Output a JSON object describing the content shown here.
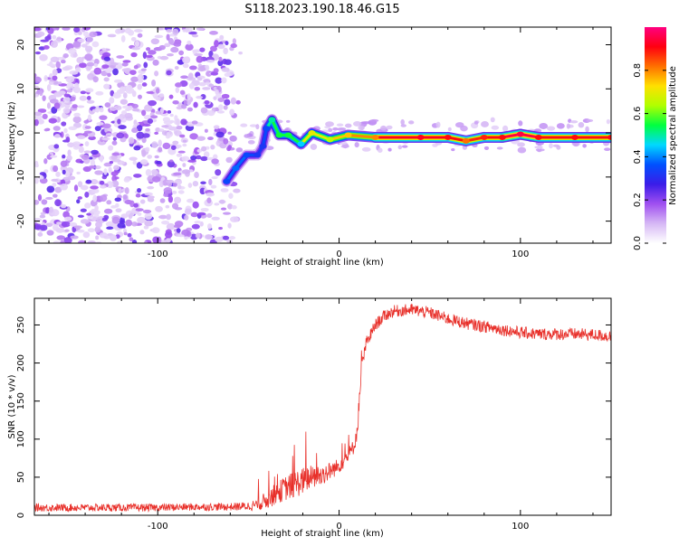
{
  "figure_title": "S118.2023.190.18.46.G15",
  "colorbar": {
    "label": "Normalized spectral amplitude",
    "range": [
      0,
      1
    ],
    "ticks": [
      {
        "value": 0.0,
        "label": "0.0"
      },
      {
        "value": 0.2,
        "label": "0.2"
      },
      {
        "value": 0.4,
        "label": "0.4"
      },
      {
        "value": 0.6,
        "label": "0.6"
      },
      {
        "value": 0.8,
        "label": "0.8"
      }
    ],
    "palette": [
      "#ffffff",
      "#d6b8f5",
      "#a050f0",
      "#3b1ce8",
      "#0050ff",
      "#00d8ff",
      "#00ff40",
      "#b0ff00",
      "#ffe000",
      "#ff7000",
      "#ff0010",
      "#ff0080"
    ]
  },
  "chart_data": [
    {
      "id": "spectrogram",
      "type": "heatmap",
      "xlabel": "Height of straight line (km)",
      "ylabel": "Frequency (Hz)",
      "xlim": [
        -168,
        150
      ],
      "ylim": [
        -25,
        24
      ],
      "xticks": [
        {
          "value": -100,
          "label": "-100"
        },
        {
          "value": 0,
          "label": "0"
        },
        {
          "value": 100,
          "label": "100"
        }
      ],
      "yticks": [
        {
          "value": 20,
          "label": "20"
        },
        {
          "value": 10,
          "label": "10"
        },
        {
          "value": 0,
          "label": "0"
        },
        {
          "value": -10,
          "label": "-10"
        },
        {
          "value": -20,
          "label": "-20"
        }
      ],
      "noise_region": {
        "x": [
          -168,
          -53
        ],
        "y": [
          -25,
          24
        ],
        "amplitude": [
          0.05,
          0.25
        ]
      },
      "signal_track": [
        {
          "x": -62,
          "y": -11,
          "amp": 0.35
        },
        {
          "x": -57,
          "y": -8,
          "amp": 0.38
        },
        {
          "x": -51,
          "y": -5,
          "amp": 0.35
        },
        {
          "x": -45,
          "y": -5,
          "amp": 0.32
        },
        {
          "x": -42,
          "y": -3,
          "amp": 0.32
        },
        {
          "x": -40,
          "y": 1,
          "amp": 0.35
        },
        {
          "x": -37,
          "y": 3,
          "amp": 0.5
        },
        {
          "x": -33,
          "y": -0.5,
          "amp": 0.55
        },
        {
          "x": -28,
          "y": -0.5,
          "amp": 0.55
        },
        {
          "x": -21,
          "y": -2.5,
          "amp": 0.45
        },
        {
          "x": -15,
          "y": 0,
          "amp": 0.7
        },
        {
          "x": -5,
          "y": -1.5,
          "amp": 0.65
        },
        {
          "x": 5,
          "y": -0.5,
          "amp": 0.75
        },
        {
          "x": 20,
          "y": -1,
          "amp": 0.8
        },
        {
          "x": 45,
          "y": -1,
          "amp": 0.92
        },
        {
          "x": 60,
          "y": -1,
          "amp": 0.9
        },
        {
          "x": 70,
          "y": -1.8,
          "amp": 0.82
        },
        {
          "x": 80,
          "y": -1,
          "amp": 0.88
        },
        {
          "x": 90,
          "y": -1,
          "amp": 0.9
        },
        {
          "x": 100,
          "y": -0.3,
          "amp": 0.95
        },
        {
          "x": 110,
          "y": -1,
          "amp": 0.9
        },
        {
          "x": 130,
          "y": -1,
          "amp": 0.9
        },
        {
          "x": 150,
          "y": -1,
          "amp": 0.9
        }
      ]
    },
    {
      "id": "snr",
      "type": "line",
      "xlabel": "Height of straight line (km)",
      "ylabel": "SNR (10 * v/v)",
      "xlim": [
        -168,
        150
      ],
      "ylim": [
        0,
        285
      ],
      "series_color": "#e8302a",
      "xticks": [
        {
          "value": -100,
          "label": "-100"
        },
        {
          "value": 0,
          "label": "0"
        },
        {
          "value": 100,
          "label": "100"
        }
      ],
      "yticks": [
        {
          "value": 0,
          "label": "0"
        },
        {
          "value": 50,
          "label": "50"
        },
        {
          "value": 100,
          "label": "100"
        },
        {
          "value": 150,
          "label": "150"
        },
        {
          "value": 200,
          "label": "200"
        },
        {
          "value": 250,
          "label": "250"
        }
      ],
      "series": [
        {
          "x": [
            -168,
            -140,
            -120,
            -100,
            -80,
            -60,
            -50,
            -45,
            -40,
            -35,
            -30,
            -25,
            -20,
            -15,
            -10,
            -5,
            0,
            5,
            8,
            10,
            12,
            13,
            15,
            20,
            25,
            30,
            40,
            50,
            60,
            70,
            80,
            90,
            100,
            110,
            120,
            130,
            140,
            150
          ],
          "y": [
            10,
            10,
            10,
            10,
            11,
            11,
            12,
            14,
            20,
            28,
            35,
            40,
            45,
            50,
            52,
            58,
            65,
            78,
            90,
            110,
            180,
            200,
            225,
            250,
            262,
            268,
            270,
            266,
            258,
            252,
            248,
            244,
            240,
            238,
            238,
            238,
            237,
            235
          ],
          "noise": [
            5,
            5,
            5,
            5,
            5,
            5,
            6,
            8,
            12,
            14,
            16,
            18,
            18,
            16,
            14,
            12,
            10,
            10,
            10,
            12,
            12,
            10,
            10,
            8,
            8,
            8,
            8,
            8,
            8,
            8,
            8,
            8,
            8,
            8,
            8,
            8,
            8,
            8
          ]
        }
      ]
    }
  ]
}
